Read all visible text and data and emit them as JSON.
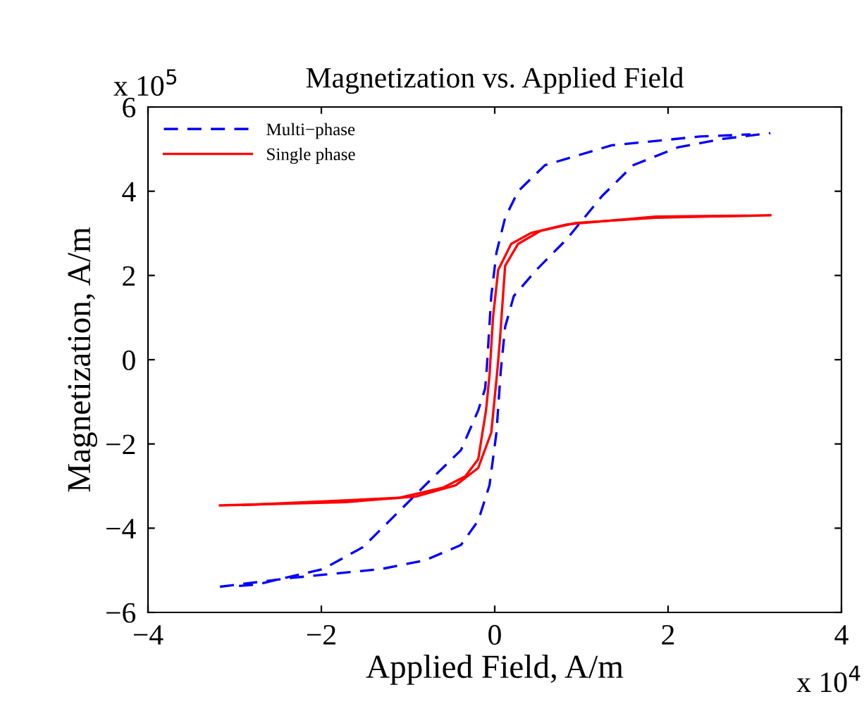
{
  "chart_data": {
    "type": "line",
    "title": "Magnetization vs. Applied Field",
    "xlabel": "Applied Field, A/m",
    "ylabel": "Magnetization, A/m",
    "annotations": [
      "x 10$^{5}$",
      "x 10$^{4}$"
    ],
    "xlim": [
      -4,
      4
    ],
    "xticks": [
      -4,
      -2,
      0,
      2,
      4
    ],
    "ylim": [
      -6,
      6
    ],
    "yticks": [
      -6,
      -4,
      -2,
      0,
      2,
      4,
      6
    ],
    "grid": false,
    "legend": "top left",
    "marker": "none",
    "series": [
      {
        "name": "Multi−phase",
        "color": "#0000ff",
        "line_style": "dashed",
        "x": [
          -3.17,
          -2.34,
          -1.31,
          -0.8,
          -0.39,
          -0.19,
          -0.06,
          0.02,
          0.07,
          0.12,
          0.22,
          0.48,
          0.83,
          1.24,
          1.6,
          2.11,
          2.62,
          3.18
        ],
        "values": [
          -5.39,
          -5.18,
          -4.97,
          -4.76,
          -4.4,
          -3.82,
          -2.98,
          -1.73,
          -0.26,
          0.78,
          1.51,
          2.13,
          2.86,
          3.89,
          4.62,
          5.04,
          5.24,
          5.38
        ]
      },
      {
        "color": "#0000ff",
        "line_style": "dashed",
        "x": [
          -2.95,
          -2.75,
          -1.98,
          -1.52,
          -1.06,
          -0.7,
          -0.39,
          -0.19,
          -0.11,
          -0.09,
          -0.04,
          0.02,
          0.12,
          0.27,
          0.58,
          1.35,
          2.37,
          2.95
        ],
        "values": [
          -5.37,
          -5.34,
          -4.97,
          -4.45,
          -3.51,
          -2.77,
          -2.15,
          -1.2,
          -0.68,
          -0.16,
          1.51,
          2.54,
          3.37,
          4.0,
          4.62,
          5.09,
          5.3,
          5.35
        ]
      },
      {
        "name": "Single phase",
        "color": "#ff0000",
        "line_style": "solid",
        "x": [
          -3.17,
          -1.72,
          -0.91,
          -0.45,
          -0.19,
          -0.04,
          0.03,
          0.06,
          0.12,
          0.27,
          0.53,
          0.94,
          1.86,
          3.18
        ],
        "values": [
          -3.46,
          -3.38,
          -3.25,
          -2.98,
          -2.57,
          -1.73,
          -0.26,
          0.47,
          2.23,
          2.75,
          3.06,
          3.25,
          3.37,
          3.43
        ]
      },
      {
        "color": "#ff0000",
        "line_style": "solid",
        "x": [
          -2.9,
          -1.11,
          -0.6,
          -0.34,
          -0.19,
          -0.1,
          -0.06,
          -0.02,
          0.04,
          0.19,
          0.42,
          0.83,
          1.86,
          2.9
        ],
        "values": [
          -3.45,
          -3.28,
          -3.04,
          -2.77,
          -2.36,
          -1.2,
          -0.36,
          0.99,
          2.13,
          2.75,
          3.01,
          3.21,
          3.4,
          3.42
        ]
      }
    ]
  }
}
